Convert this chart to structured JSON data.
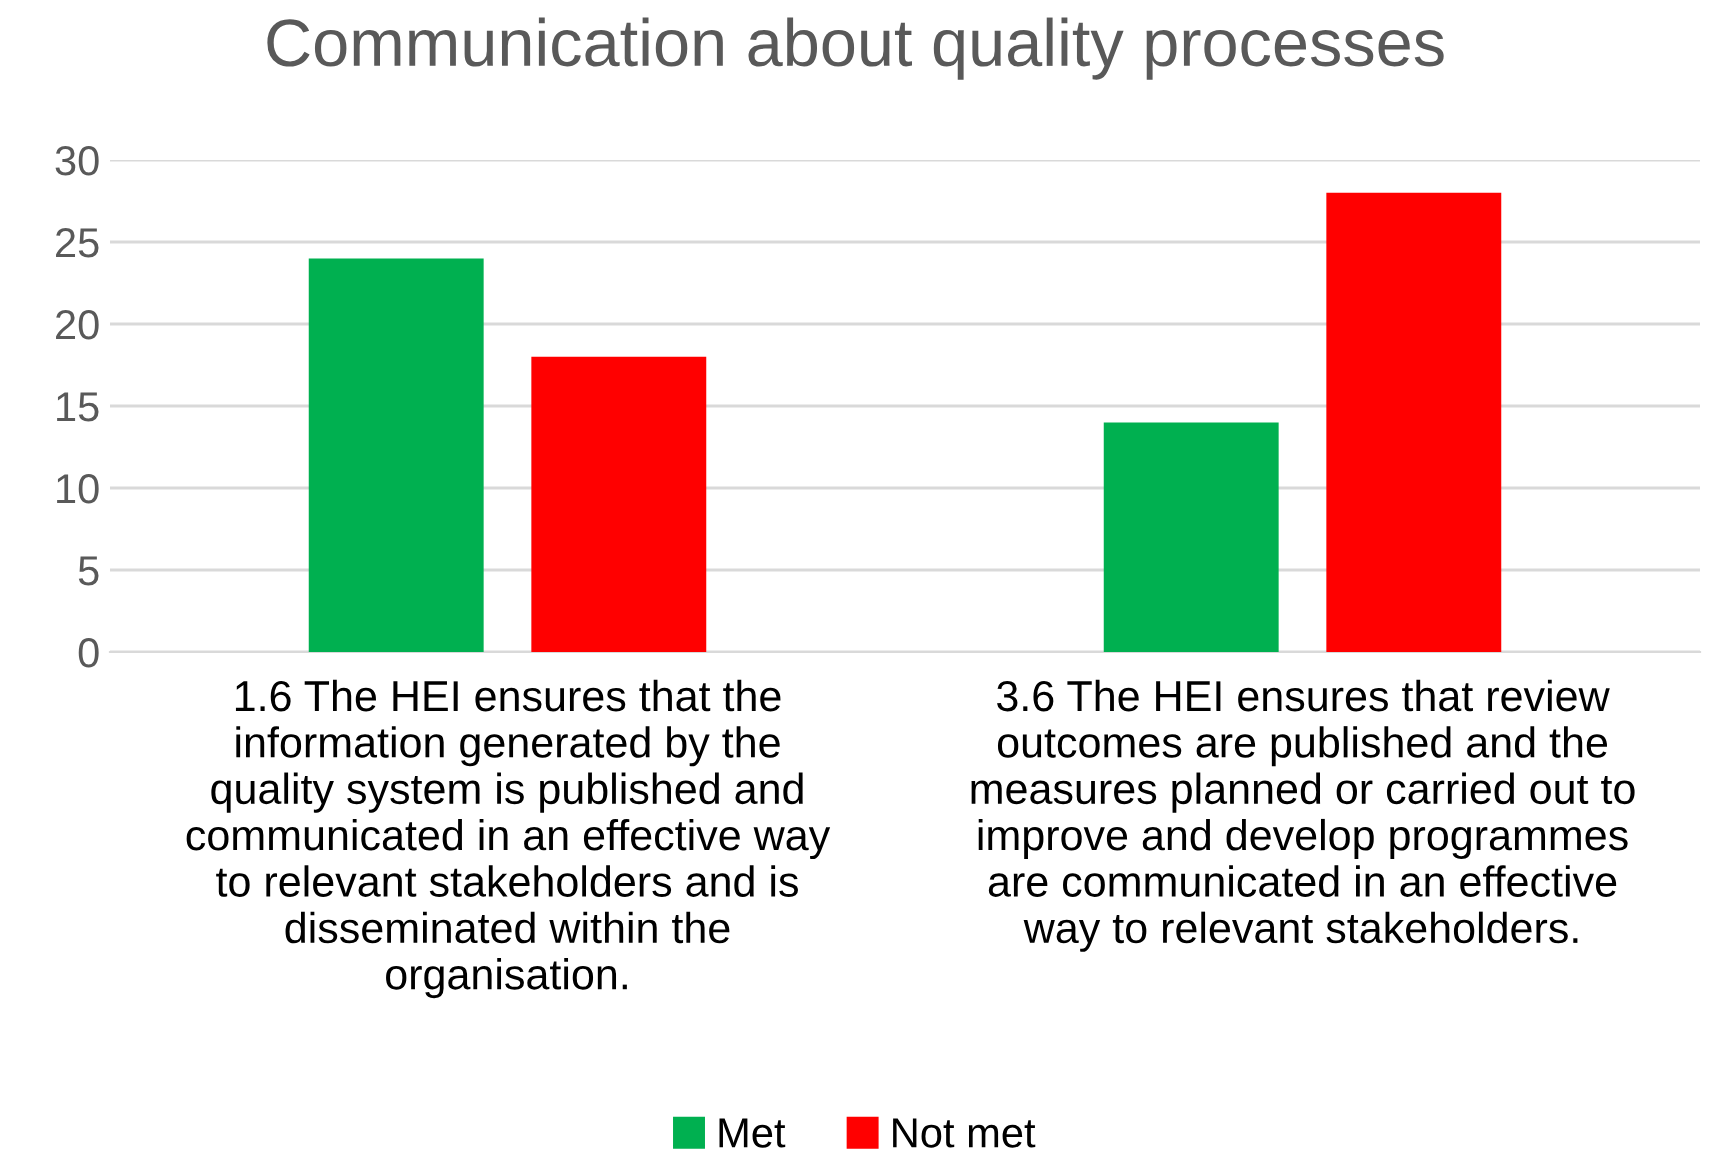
{
  "chart_data": {
    "type": "bar",
    "title": "Communication about quality processes",
    "categories": [
      "1.6 The HEI ensures that the\ninformation generated by the\nquality system is published and\ncommunicated in an effective way\nto relevant stakeholders and is\ndisseminated within the\norganisation.",
      "3.6 The HEI ensures that review\noutcomes are published and the\nmeasures planned or carried out to\nimprove and develop programmes\nare communicated in an effective\nway to relevant stakeholders."
    ],
    "series": [
      {
        "name": "Met",
        "color": "#00b050",
        "values": [
          24,
          14
        ]
      },
      {
        "name": "Not met",
        "color": "#ff0000",
        "values": [
          18,
          28
        ]
      }
    ],
    "ylim": [
      0,
      30
    ],
    "yticks": [
      0,
      5,
      10,
      15,
      20,
      25,
      30
    ],
    "grid": "y",
    "legend": "bottom"
  }
}
